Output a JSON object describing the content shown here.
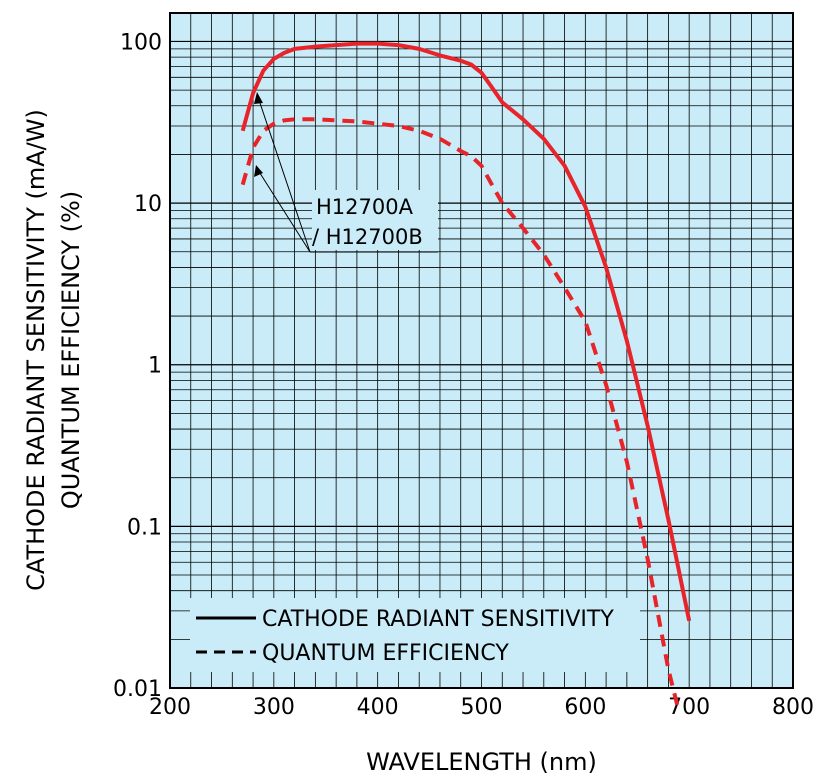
{
  "chart_data": {
    "type": "line",
    "xlabel": "WAVELENGTH (nm)",
    "ylabel_line1": "CATHODE RADIANT SENSITIVITY (mA/W)",
    "ylabel_line2": "QUANTUM EFFICIENCY (%)",
    "xlim": [
      200,
      800
    ],
    "ylim": [
      0.01,
      150
    ],
    "yscale": "log",
    "xticks": [
      200,
      300,
      400,
      500,
      600,
      700,
      800
    ],
    "xtick_labels": [
      "200",
      "300",
      "400",
      "500",
      "600",
      "700",
      "800"
    ],
    "yticks": [
      0.01,
      0.1,
      1,
      10,
      100
    ],
    "ytick_labels": [
      "0.01",
      "0.1",
      "1",
      "10",
      "100"
    ],
    "grid": true,
    "background_color": "#c9ecf8",
    "series": [
      {
        "name": "CATHODE RADIANT SENSITIVITY",
        "style": "solid",
        "color": "#e8242b",
        "x": [
          270,
          280,
          290,
          300,
          310,
          320,
          340,
          360,
          380,
          400,
          420,
          440,
          460,
          480,
          490,
          500,
          510,
          520,
          540,
          560,
          580,
          600,
          620,
          640,
          660,
          680,
          700
        ],
        "y": [
          28,
          48,
          66,
          78,
          85,
          90,
          93,
          95,
          97,
          97,
          95,
          90,
          82,
          76,
          72,
          64,
          52,
          42,
          33,
          25,
          17,
          9.5,
          4,
          1.4,
          0.42,
          0.11,
          0.026
        ]
      },
      {
        "name": "QUANTUM EFFICIENCY",
        "style": "dashed",
        "color": "#e8242b",
        "x": [
          270,
          280,
          290,
          300,
          310,
          320,
          340,
          360,
          380,
          400,
          420,
          440,
          460,
          480,
          490,
          500,
          510,
          520,
          540,
          560,
          580,
          600,
          620,
          640,
          660,
          680,
          690
        ],
        "y": [
          13,
          22,
          28,
          31,
          32.5,
          33,
          33,
          32.5,
          32,
          31,
          30,
          28,
          25,
          21,
          19.5,
          17,
          13,
          10,
          7,
          4.8,
          3,
          1.85,
          0.75,
          0.25,
          0.063,
          0.013,
          0.0072
        ]
      }
    ],
    "legend": {
      "placement": "bottom-left",
      "entries": [
        "CATHODE RADIANT SENSITIVITY",
        "QUANTUM EFFICIENCY"
      ]
    },
    "annotation": {
      "line1": "H12700A",
      "line2": "/ H12700B"
    }
  }
}
